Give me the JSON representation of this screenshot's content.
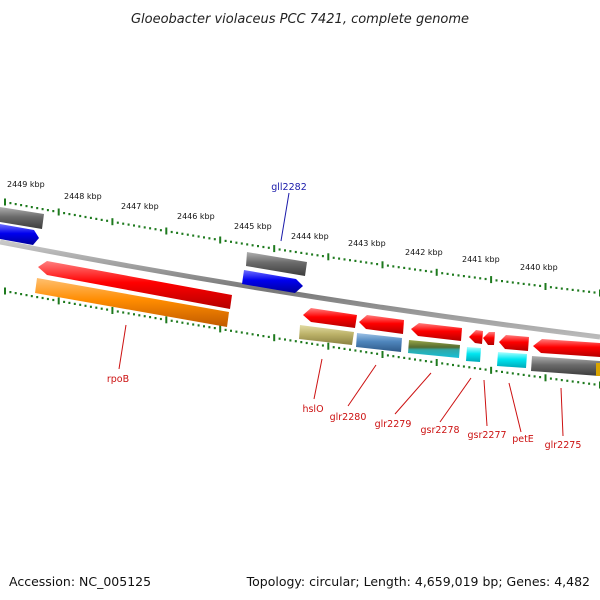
{
  "title": "Gloeobacter violaceus PCC 7421, complete genome",
  "footer": {
    "accession": "Accession: NC_005125",
    "summary": "Topology: circular; Length: 4,659,019 bp; Genes: 4,482"
  },
  "colors": {
    "backbone": "#8a8a8a",
    "tick": "#1e7a1e",
    "label_forward": "#1a1aaa",
    "label_reverse": "#cc1111"
  },
  "kbp_labels": [
    "2449 kbp",
    "2448 kbp",
    "2447 kbp",
    "2446 kbp",
    "2445 kbp",
    "2444 kbp",
    "2443 kbp",
    "2442 kbp",
    "2441 kbp",
    "2440 kbp"
  ],
  "gene_labels": [
    {
      "name": "gll2282",
      "strand": "forward"
    },
    {
      "name": "rpoB",
      "strand": "reverse"
    },
    {
      "name": "hslO",
      "strand": "reverse"
    },
    {
      "name": "glr2280",
      "strand": "reverse"
    },
    {
      "name": "glr2279",
      "strand": "reverse"
    },
    {
      "name": "gsr2278",
      "strand": "reverse"
    },
    {
      "name": "gsr2277",
      "strand": "reverse"
    },
    {
      "name": "petE",
      "strand": "reverse"
    },
    {
      "name": "glr2275",
      "strand": "reverse"
    }
  ]
}
